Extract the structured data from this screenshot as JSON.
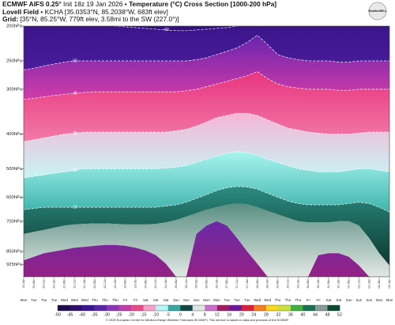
{
  "chart_data": {
    "type": "cross-section",
    "title": "ECMWF AIFS 0.25°",
    "init": "Init 18z 19 Jan 2026 •",
    "subtitle": "Temperature (°C) Cross Section [1000-200 hPa]",
    "station_name": "Lovell Field",
    "station": "• KCHA [35.0353°N, 85.2038°W, 683ft elev]",
    "grid_label": "Grid:",
    "grid_info": "[35°N, 85.25°W, 779ft elev, 3.58mi to the SW (227.0°)]",
    "logo": "WeatherBELL",
    "copyright": "© 2026 European Centre for Medium-Range Weather Forecasts (ECMWF). This service is based on data and products of the ECMWF.",
    "ylog": true,
    "ylim": [
      1000,
      200
    ],
    "yticks": [
      {
        "value": 200,
        "label": "200hPa"
      },
      {
        "value": 250,
        "label": "250hPa"
      },
      {
        "value": 300,
        "label": "300hPa"
      },
      {
        "value": 400,
        "label": "400hPa"
      },
      {
        "value": 500,
        "label": "500hPa"
      },
      {
        "value": 600,
        "label": "600hPa"
      },
      {
        "value": 700,
        "label": "700hPa"
      },
      {
        "value": 850,
        "label": "850hPa"
      },
      {
        "value": 925,
        "label": "925hPa"
      }
    ],
    "categories": [
      "19-18z",
      "20-06z",
      "20-12z",
      "20-18z",
      "21-06z",
      "21-12z",
      "21-18z",
      "22-06z",
      "22-12z",
      "22-18z",
      "23-06z",
      "23-18z",
      "24-06z",
      "24-12z",
      "24-18z",
      "25-06z",
      "25-12z",
      "25-18z",
      "26-06z",
      "26-18z",
      "27-06z",
      "27-12z",
      "27-18z",
      "28-06z",
      "28-18z",
      "29-06z",
      "29-12z",
      "29-18z",
      "30-06z",
      "30-18z",
      "31-06z",
      "31-18z",
      "01-06z",
      "01-12z",
      "01-18z",
      "02-06z",
      "02-18z"
    ],
    "weekdays": [
      "Mon",
      "Tue",
      "Tue",
      "Tue",
      "Wed",
      "Wed",
      "Wed",
      "Thu",
      "Thu",
      "Thu",
      "Fri",
      "Fri",
      "Sat",
      "Sat",
      "Sat",
      "Sun",
      "Sun",
      "Sun",
      "Mon",
      "Mon",
      "Tue",
      "Tue",
      "Tue",
      "Wed",
      "Wed",
      "Thu",
      "Thu",
      "Thu",
      "Fri",
      "Fri",
      "Sat",
      "Sat",
      "Sun",
      "Sun",
      "Sun",
      "Mon",
      "Mon"
    ],
    "contours": [
      {
        "level": -60,
        "labeled": true,
        "values": [
          195,
          195,
          195,
          195,
          195,
          196,
          197,
          198,
          199,
          200,
          201,
          202,
          203,
          204,
          205,
          206,
          206,
          205,
          204,
          203,
          202,
          200,
          198,
          196,
          195,
          195,
          195,
          195,
          195,
          195,
          195,
          195,
          195,
          195,
          195,
          195,
          195
        ]
      },
      {
        "level": -50,
        "labeled": true,
        "values": [
          265,
          262,
          258,
          255,
          252,
          250,
          250,
          250,
          250,
          250,
          250,
          250,
          250,
          250,
          250,
          250,
          250,
          248,
          245,
          240,
          235,
          230,
          222,
          212,
          225,
          240,
          245,
          248,
          250,
          250,
          250,
          252,
          252,
          250,
          250,
          250,
          250
        ]
      },
      {
        "level": -40,
        "labeled": true,
        "values": [
          320,
          318,
          315,
          312,
          310,
          308,
          306,
          305,
          305,
          305,
          305,
          305,
          305,
          305,
          305,
          305,
          303,
          300,
          295,
          290,
          285,
          280,
          275,
          268,
          280,
          290,
          295,
          298,
          300,
          300,
          300,
          302,
          302,
          300,
          300,
          300,
          300
        ]
      },
      {
        "level": -30,
        "labeled": true,
        "values": [
          420,
          415,
          410,
          405,
          400,
          398,
          395,
          395,
          395,
          395,
          395,
          395,
          395,
          395,
          395,
          392,
          388,
          380,
          370,
          360,
          355,
          350,
          350,
          355,
          365,
          375,
          385,
          390,
          395,
          398,
          400,
          400,
          400,
          398,
          395,
          395,
          395
        ]
      },
      {
        "level": -20,
        "labeled": true,
        "values": [
          530,
          525,
          520,
          515,
          510,
          505,
          500,
          500,
          500,
          500,
          500,
          500,
          500,
          500,
          498,
          495,
          490,
          480,
          470,
          460,
          452,
          448,
          450,
          458,
          470,
          480,
          490,
          500,
          505,
          510,
          510,
          510,
          505,
          500,
          500,
          505,
          510
        ]
      },
      {
        "level": -10,
        "labeled": true,
        "values": [
          650,
          645,
          640,
          640,
          640,
          640,
          640,
          640,
          640,
          640,
          640,
          640,
          640,
          640,
          635,
          630,
          620,
          605,
          590,
          575,
          565,
          560,
          562,
          570,
          585,
          600,
          615,
          625,
          630,
          630,
          630,
          630,
          625,
          620,
          625,
          640,
          660
        ]
      },
      {
        "level": 0,
        "labeled": false,
        "values": [
          760,
          750,
          740,
          730,
          720,
          715,
          712,
          710,
          710,
          712,
          715,
          715,
          715,
          712,
          705,
          695,
          680,
          665,
          650,
          640,
          630,
          625,
          628,
          640,
          655,
          670,
          685,
          700,
          705,
          705,
          705,
          700,
          700,
          720,
          780,
          860,
          930
        ]
      },
      {
        "level": 4,
        "labeled": false,
        "values": [
          900,
          880,
          860,
          850,
          840,
          830,
          825,
          820,
          815,
          815,
          820,
          830,
          845,
          870,
          920,
          1000,
          1000,
          760,
          720,
          700,
          720,
          780,
          850,
          920,
          1000,
          1000,
          1000,
          1000,
          1000,
          870,
          860,
          860,
          880,
          930,
          1000,
          1000,
          1000
        ]
      }
    ],
    "band_colors": [
      [
        "#2a0a70",
        "#33107e"
      ],
      [
        "#3a1488",
        "#4a1c9c"
      ],
      [
        "#6a24ae",
        "#d23ca8"
      ],
      [
        "#e8357f",
        "#f27aa8"
      ],
      [
        "#f6b6d6",
        "#c8f4f4"
      ],
      [
        "#a8f4f0",
        "#3fb4ac"
      ],
      [
        "#2c8a80",
        "#0c3a30"
      ],
      [
        "#5a8e82",
        "#e2e8e4"
      ],
      [
        "#6a2aa6",
        "#9a2080"
      ]
    ],
    "colorbar": {
      "ticks": [
        -50,
        -45,
        -40,
        -35,
        -30,
        -25,
        -20,
        -15,
        -10,
        -5,
        0,
        4,
        8,
        12,
        16,
        20,
        24,
        28,
        32,
        36,
        40,
        44,
        48,
        52
      ],
      "colors": [
        "#1c0a4a",
        "#2a0e6a",
        "#3a1690",
        "#5a22a8",
        "#8a34b8",
        "#c03ca8",
        "#e84a8c",
        "#f6a2c8",
        "#b8f6f6",
        "#3aa8a2",
        "#0e4a40",
        "#dfe6e2",
        "#c870c8",
        "#a01e60",
        "#6a1a9a",
        "#d8203a",
        "#f08020",
        "#f8d820",
        "#c8e040",
        "#40b040",
        "#1a7050",
        "#8a9a98",
        "#0a4a30"
      ]
    }
  }
}
